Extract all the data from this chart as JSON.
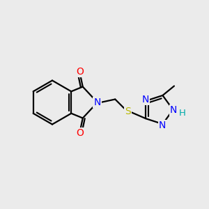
{
  "background_color": "#ebebeb",
  "bond_color": "#000000",
  "n_color": "#0000ff",
  "o_color": "#ff0000",
  "s_color": "#b8b800",
  "h_color": "#00aaaa",
  "line_width": 1.6,
  "figsize": [
    3.0,
    3.0
  ],
  "dpi": 100,
  "xlim": [
    0,
    10
  ],
  "ylim": [
    0,
    10
  ]
}
